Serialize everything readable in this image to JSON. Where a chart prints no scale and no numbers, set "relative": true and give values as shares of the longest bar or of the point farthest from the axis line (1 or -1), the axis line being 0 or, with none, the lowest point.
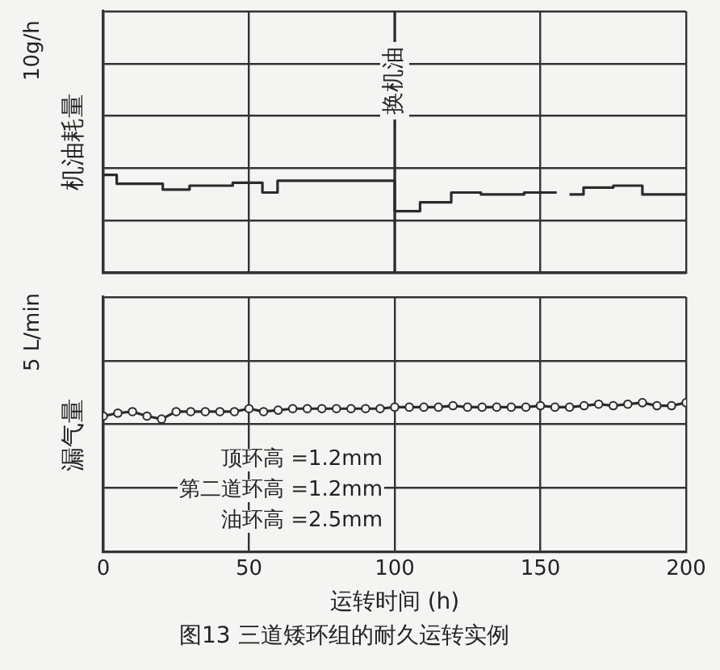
{
  "chart_data": [
    {
      "type": "step",
      "ylabel": "机油耗量",
      "annotations": [
        "10g/h"
      ],
      "relative": true,
      "xlim": [
        0,
        200
      ],
      "xticks": [
        0,
        50,
        100,
        150,
        200
      ],
      "tick_labels": false,
      "grid": true,
      "marker": "none",
      "ref_lines": [
        {
          "axis": "x",
          "value": 100,
          "label": "换机油"
        }
      ],
      "series": [
        {
          "color": "#2b2b2b",
          "x": [
            0,
            4.6,
            20.4,
            29.6,
            44.4,
            54.6,
            59.8,
            100,
            108.7,
            119.4,
            129.6,
            144.4,
            155.6,
            157,
            160,
            164.8,
            175,
            185,
            200
          ],
          "values": [
            1,
            0.91,
            0.85,
            0.89,
            0.92,
            0.82,
            0.94,
            0.63,
            0.72,
            0.82,
            0.8,
            0.82,
            0.82,
            null,
            0.8,
            0.87,
            0.89,
            0.8,
            0.8
          ]
        }
      ]
    },
    {
      "type": "line",
      "xlabel": "运转时间 (h)",
      "ylabel": "漏气量",
      "annotations": [
        "5 L/min",
        "顶环高 =1.2mm",
        "第二道环高 =1.2mm",
        "油环高 =2.5mm",
        "图13 三道矮环组的耐久运转实例"
      ],
      "relative": true,
      "xlim": [
        0,
        200
      ],
      "xticks": [
        0,
        50,
        100,
        150,
        200
      ],
      "grid": true,
      "marker": "circle",
      "series": [
        {
          "color": "#2b2b2b",
          "x": [
            0,
            5,
            10,
            15,
            20,
            25,
            30,
            35,
            40,
            45,
            50,
            55,
            60,
            65,
            70,
            75,
            80,
            85,
            90,
            95,
            100,
            105,
            110,
            115,
            120,
            125,
            130,
            135,
            140,
            145,
            150,
            155,
            160,
            165,
            170,
            175,
            180,
            185,
            190,
            195,
            200
          ],
          "values": [
            0.91,
            0.93,
            0.94,
            0.91,
            0.89,
            0.94,
            0.94,
            0.94,
            0.94,
            0.94,
            0.96,
            0.94,
            0.95,
            0.96,
            0.96,
            0.96,
            0.96,
            0.96,
            0.96,
            0.96,
            0.97,
            0.97,
            0.97,
            0.97,
            0.98,
            0.97,
            0.97,
            0.97,
            0.97,
            0.97,
            0.98,
            0.97,
            0.97,
            0.98,
            0.99,
            0.98,
            0.99,
            1,
            0.98,
            0.98,
            1
          ]
        }
      ]
    }
  ]
}
